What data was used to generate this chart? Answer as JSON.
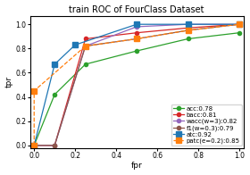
{
  "title": "train ROC of FourClass Dataset",
  "xlabel": "fpr",
  "ylabel": "tpr",
  "curves": [
    {
      "label": "acc:0.78",
      "color": "#2ca02c",
      "linestyle": "-",
      "marker": "o",
      "markersize": 3,
      "fpr": [
        0.0,
        0.1,
        0.25,
        0.5,
        0.75,
        1.0
      ],
      "tpr": [
        0.0,
        0.42,
        0.67,
        0.78,
        0.88,
        0.93
      ]
    },
    {
      "label": "bacc:0.81",
      "color": "#d62728",
      "linestyle": "-",
      "marker": "o",
      "markersize": 3,
      "fpr": [
        0.0,
        0.1,
        0.25,
        0.5,
        0.75,
        1.0
      ],
      "tpr": [
        0.0,
        0.0,
        0.88,
        0.93,
        0.97,
        1.0
      ]
    },
    {
      "label": "wacc(w=3):0.82",
      "color": "#9467bd",
      "linestyle": "-",
      "marker": "o",
      "markersize": 3,
      "fpr": [
        0.0,
        0.1,
        0.25,
        0.5,
        0.75,
        1.0
      ],
      "tpr": [
        0.0,
        0.0,
        0.82,
        0.98,
        1.0,
        1.0
      ]
    },
    {
      "label": "f1(w=0.3):0.79",
      "color": "#8c564b",
      "linestyle": "-",
      "marker": "o",
      "markersize": 3,
      "fpr": [
        0.0,
        0.1,
        0.25,
        0.5,
        0.75,
        1.0
      ],
      "tpr": [
        0.0,
        0.0,
        0.82,
        0.88,
        0.95,
        1.0
      ]
    },
    {
      "label": "atc:0.92",
      "color": "#1f77b4",
      "linestyle": "-",
      "marker": "s",
      "markersize": 4,
      "fpr": [
        0.0,
        0.1,
        0.2,
        0.5,
        0.75,
        1.0
      ],
      "tpr": [
        0.0,
        0.67,
        0.83,
        1.0,
        1.0,
        1.0
      ]
    },
    {
      "label": "patc(e=0.2):0.85",
      "color": "#ff7f0e",
      "linestyle": "--",
      "marker": "s",
      "markersize": 4,
      "fpr": [
        0.0,
        0.0,
        0.25,
        0.5,
        0.75,
        1.0
      ],
      "tpr": [
        0.0,
        0.45,
        0.82,
        0.88,
        0.95,
        1.0
      ]
    }
  ],
  "xlim": [
    -0.02,
    1.02
  ],
  "ylim": [
    -0.02,
    1.07
  ],
  "xticks": [
    0.0,
    0.2,
    0.4,
    0.6,
    0.8,
    1.0
  ],
  "yticks": [
    0.0,
    0.2,
    0.4,
    0.6,
    0.8,
    1.0
  ],
  "legend_loc": "lower right",
  "legend_fontsize": 5.0,
  "title_fontsize": 7.0,
  "label_fontsize": 6.5,
  "tick_fontsize": 5.5
}
